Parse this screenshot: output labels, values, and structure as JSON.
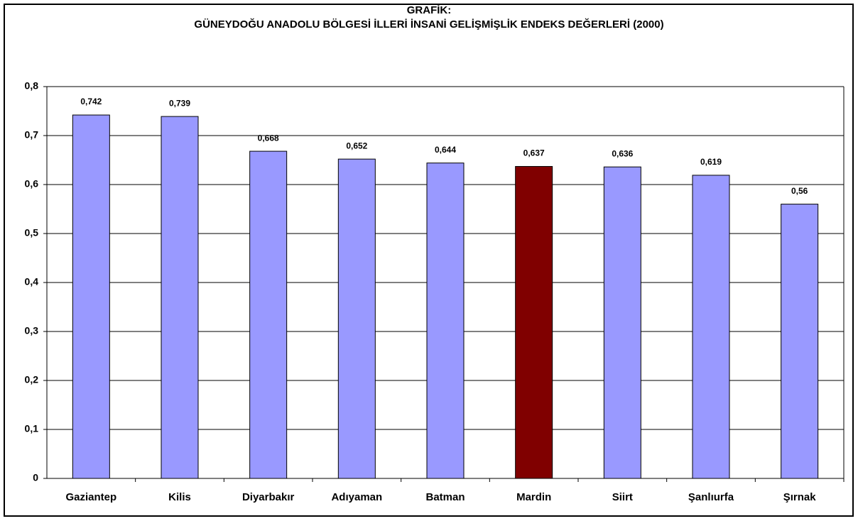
{
  "chart_data": {
    "type": "bar",
    "title": "GRAFİK:",
    "subtitle": "GÜNEYDOĞU ANADOLU BÖLGESİ İLLERİ İNSANİ GELİŞMİŞLİK ENDEKS DEĞERLERİ (2000)",
    "categories": [
      "Gaziantep",
      "Kilis",
      "Diyarbakır",
      "Adıyaman",
      "Batman",
      "Mardin",
      "Siirt",
      "Şanlıurfa",
      "Şırnak"
    ],
    "values": [
      0.742,
      0.739,
      0.668,
      0.652,
      0.644,
      0.637,
      0.636,
      0.619,
      0.56
    ],
    "value_labels": [
      "0,742",
      "0,739",
      "0,668",
      "0,652",
      "0,644",
      "0,637",
      "0,636",
      "0,619",
      "0,56"
    ],
    "colors": [
      "#9999ff",
      "#9999ff",
      "#9999ff",
      "#9999ff",
      "#9999ff",
      "#800000",
      "#9999ff",
      "#9999ff",
      "#9999ff"
    ],
    "ylim": [
      0,
      0.8
    ],
    "yticks": [
      0,
      {
        "value": 0.1,
        "label": "0,1"
      },
      {
        "value": 0.2,
        "label": "0,2"
      },
      {
        "value": 0.3,
        "label": "0,3"
      },
      {
        "value": 0.4,
        "label": "0,4"
      },
      {
        "value": 0.5,
        "label": "0,5"
      },
      {
        "value": 0.6,
        "label": "0,6"
      },
      {
        "value": 0.7,
        "label": "0,7"
      },
      {
        "value": 0.8,
        "label": "0,8"
      }
    ],
    "grid": true
  }
}
